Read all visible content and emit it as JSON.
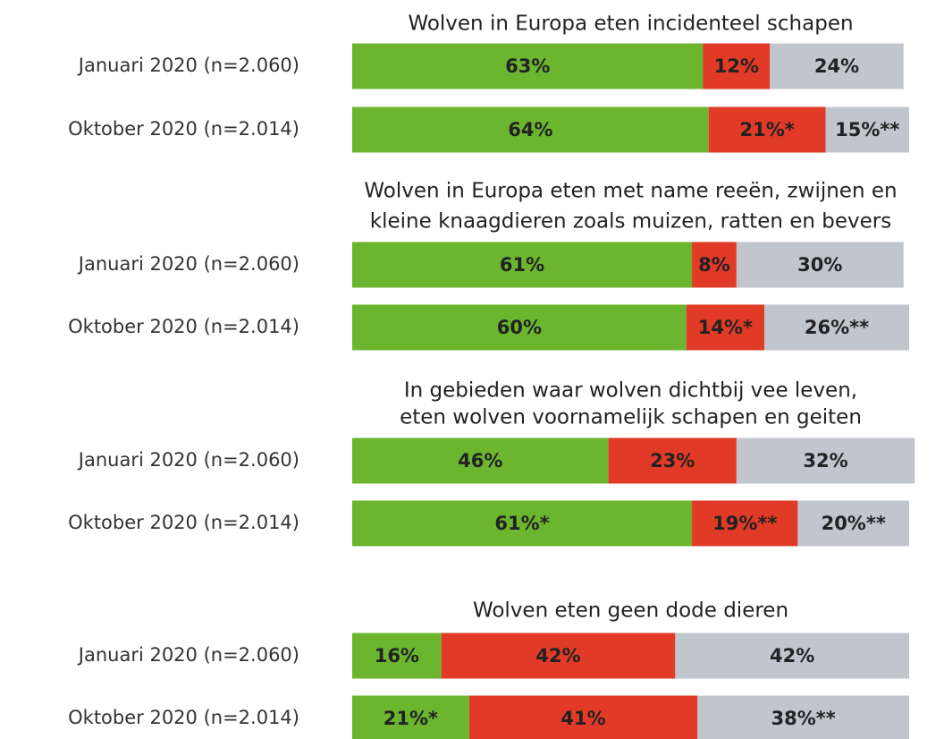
{
  "chart_data": [
    {
      "type": "bar",
      "orientation": "horizontal",
      "stacked": true,
      "title": [
        "Wolven in Europa eten incidenteel schapen"
      ],
      "categories": [
        "Januari 2020 (n=2.060)",
        "Oktober 2020 (n=2.014)"
      ],
      "xlim": [
        0,
        100
      ],
      "series": [
        {
          "color": "#6cb52f",
          "values": [
            63,
            64
          ],
          "value_labels": [
            "63%",
            "64%"
          ]
        },
        {
          "color": "#e13a27",
          "values": [
            12,
            21
          ],
          "value_labels": [
            "12%",
            "21%*"
          ]
        },
        {
          "color": "#c1c5cc",
          "values": [
            24,
            15
          ],
          "value_labels": [
            "24%",
            "15%**"
          ]
        }
      ]
    },
    {
      "type": "bar",
      "orientation": "horizontal",
      "stacked": true,
      "title": [
        "Wolven in Europa eten met name reeën, zwijnen en",
        "kleine knaagdieren zoals muizen, ratten en bevers"
      ],
      "categories": [
        "Januari 2020 (n=2.060)",
        "Oktober 2020 (n=2.014)"
      ],
      "xlim": [
        0,
        100
      ],
      "series": [
        {
          "color": "#6cb52f",
          "values": [
            61,
            60
          ],
          "value_labels": [
            "61%",
            "60%"
          ]
        },
        {
          "color": "#e13a27",
          "values": [
            8,
            14
          ],
          "value_labels": [
            "8%",
            "14%*"
          ]
        },
        {
          "color": "#c1c5cc",
          "values": [
            30,
            26
          ],
          "value_labels": [
            "30%",
            "26%**"
          ]
        }
      ]
    },
    {
      "type": "bar",
      "orientation": "horizontal",
      "stacked": true,
      "title": [
        "In gebieden waar wolven dichtbij vee leven,",
        "eten wolven voornamelijk schapen en geiten"
      ],
      "categories": [
        "Januari 2020 (n=2.060)",
        "Oktober 2020 (n=2.014)"
      ],
      "xlim": [
        0,
        100
      ],
      "series": [
        {
          "color": "#6cb52f",
          "values": [
            46,
            61
          ],
          "value_labels": [
            "46%",
            "61%*"
          ]
        },
        {
          "color": "#e13a27",
          "values": [
            23,
            19
          ],
          "value_labels": [
            "23%",
            "19%**"
          ]
        },
        {
          "color": "#c1c5cc",
          "values": [
            32,
            20
          ],
          "value_labels": [
            "32%",
            "20%**"
          ]
        }
      ]
    },
    {
      "type": "bar",
      "orientation": "horizontal",
      "stacked": true,
      "title": [
        "Wolven eten geen dode dieren"
      ],
      "categories": [
        "Januari 2020 (n=2.060)",
        "Oktober 2020 (n=2.014)"
      ],
      "xlim": [
        0,
        100
      ],
      "series": [
        {
          "color": "#6cb52f",
          "values": [
            16,
            21
          ],
          "value_labels": [
            "16%",
            "21%*"
          ]
        },
        {
          "color": "#e13a27",
          "values": [
            42,
            41
          ],
          "value_labels": [
            "42%",
            "41%"
          ]
        },
        {
          "color": "#c1c5cc",
          "values": [
            42,
            38
          ],
          "value_labels": [
            "42%",
            "38%**"
          ]
        }
      ]
    }
  ]
}
